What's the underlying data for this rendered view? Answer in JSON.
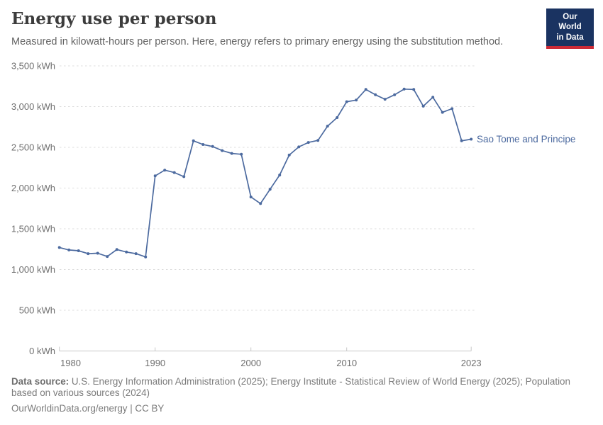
{
  "header": {
    "title": "Energy use per person",
    "subtitle": "Measured in kilowatt-hours per person. Here, energy refers to primary energy using the substitution method.",
    "logo": {
      "line1": "Our World",
      "line2": "in Data"
    }
  },
  "chart_data": {
    "type": "line",
    "title": "Energy use per person",
    "xlabel": "",
    "ylabel": "kWh",
    "unit_suffix": " kWh",
    "ylim": [
      0,
      3500
    ],
    "ytick_step": 500,
    "xticks": [
      1980,
      1990,
      2000,
      2010,
      2023
    ],
    "grid": "horizontal-dashed",
    "legend": "end-of-line-label",
    "x": [
      1980,
      1981,
      1982,
      1983,
      1984,
      1985,
      1986,
      1987,
      1988,
      1989,
      1990,
      1991,
      1992,
      1993,
      1994,
      1995,
      1996,
      1997,
      1998,
      1999,
      2000,
      2001,
      2002,
      2003,
      2004,
      2005,
      2006,
      2007,
      2008,
      2009,
      2010,
      2011,
      2012,
      2013,
      2014,
      2015,
      2016,
      2017,
      2018,
      2019,
      2020,
      2021,
      2022,
      2023
    ],
    "series": [
      {
        "name": "Sao Tome and Principe",
        "color": "#4c6a9f",
        "values": [
          1270,
          1240,
          1230,
          1195,
          1200,
          1160,
          1245,
          1215,
          1195,
          1155,
          2150,
          2220,
          2190,
          2140,
          2580,
          2535,
          2510,
          2460,
          2425,
          2415,
          1890,
          1810,
          1985,
          2160,
          2405,
          2505,
          2560,
          2585,
          2760,
          2865,
          3060,
          3080,
          3210,
          3145,
          3090,
          3145,
          3215,
          3210,
          3005,
          3115,
          2930,
          2975,
          2580,
          2600
        ]
      }
    ]
  },
  "footer": {
    "data_source_label": "Data source:",
    "data_source_text": "U.S. Energy Information Administration (2025); Energy Institute - Statistical Review of World Energy (2025); Population based on various sources (2024)",
    "attribution": "OurWorldinData.org/energy | CC BY"
  },
  "colors": {
    "series_blue": "#4c6a9f",
    "logo_navy": "#1a3361",
    "logo_red": "#cc2a36",
    "gridline_gray": "#dcdcdc",
    "axis_gray": "#c8c8c8",
    "tick_text_gray": "#6f6f6f"
  }
}
